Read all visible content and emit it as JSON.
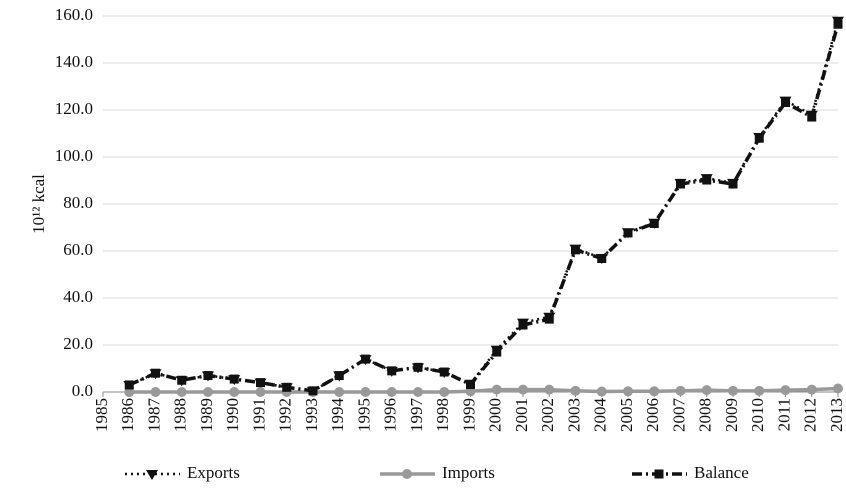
{
  "chart_data": {
    "type": "line",
    "y_label": "10¹² kcal",
    "categories": [
      "1985",
      "1986",
      "1987",
      "1988",
      "1989",
      "1990",
      "1991",
      "1992",
      "1993",
      "1994",
      "1995",
      "1996",
      "1997",
      "1998",
      "1999",
      "2000",
      "2001",
      "2002",
      "2003",
      "2004",
      "2005",
      "2006",
      "2007",
      "2008",
      "2009",
      "2010",
      "2011",
      "2012",
      "2013"
    ],
    "series": [
      {
        "name": "Exports",
        "color": "#111111",
        "line_style": "dotted",
        "marker": "triangle",
        "values": [
          null,
          3.0,
          8.0,
          5.0,
          7.0,
          5.5,
          4.0,
          2.0,
          0.5,
          7.0,
          14.0,
          9.0,
          10.5,
          8.5,
          3.5,
          18.0,
          29.5,
          32.0,
          61.0,
          57.0,
          68.0,
          72.0,
          89.0,
          91.0,
          89.0,
          108.5,
          124.0,
          118.0,
          158.0
        ]
      },
      {
        "name": "Imports",
        "color": "#999999",
        "line_style": "solid",
        "marker": "circle",
        "values": [
          null,
          0.0,
          0.0,
          0.0,
          0.0,
          0.0,
          0.0,
          0.0,
          0.0,
          0.0,
          0.0,
          0.0,
          0.0,
          0.0,
          0.3,
          1.0,
          1.0,
          1.0,
          0.5,
          0.2,
          0.3,
          0.3,
          0.5,
          0.8,
          0.5,
          0.5,
          0.8,
          1.0,
          1.5
        ]
      },
      {
        "name": "Balance",
        "color": "#111111",
        "line_style": "dashdot",
        "marker": "square",
        "values": [
          null,
          3.0,
          8.0,
          5.0,
          7.0,
          5.5,
          4.0,
          2.0,
          0.5,
          7.0,
          14.0,
          9.0,
          10.5,
          8.5,
          3.2,
          17.0,
          28.5,
          31.0,
          60.5,
          56.8,
          67.7,
          71.7,
          88.5,
          90.2,
          88.5,
          108.0,
          123.2,
          117.0,
          156.5
        ]
      }
    ],
    "ylim": [
      0,
      160
    ],
    "yticks": [
      {
        "value": 0,
        "label": "0.0"
      },
      {
        "value": 20,
        "label": "20.0"
      },
      {
        "value": 40,
        "label": "40.0"
      },
      {
        "value": 60,
        "label": "60.0"
      },
      {
        "value": 80,
        "label": "80.0"
      },
      {
        "value": 100,
        "label": "100.0"
      },
      {
        "value": 120,
        "label": "120.0"
      },
      {
        "value": 140,
        "label": "140.0"
      },
      {
        "value": 160,
        "label": "160.0"
      }
    ],
    "grid": true,
    "legend": "bottom"
  }
}
